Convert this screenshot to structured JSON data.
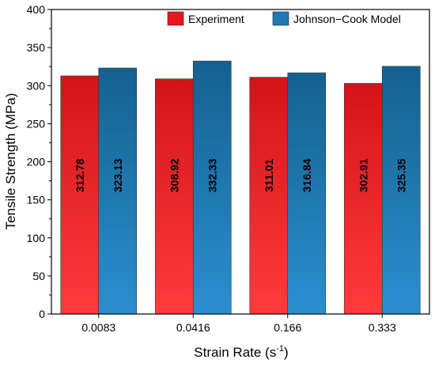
{
  "chart_data": {
    "type": "bar",
    "categories": [
      "0.0083",
      "0.0416",
      "0.166",
      "0.333"
    ],
    "series": [
      {
        "name": "Experiment",
        "values": [
          312.78,
          308.92,
          311.01,
          302.91
        ],
        "labels": [
          "312.78",
          "308.92",
          "311.01",
          "302.91"
        ],
        "color": "#e8171e"
      },
      {
        "name": "Johnson−Cook Model",
        "values": [
          323.13,
          332.33,
          316.84,
          325.35
        ],
        "labels": [
          "323.13",
          "332.33",
          "316.84",
          "325.35"
        ],
        "color": "#1f78b4"
      }
    ],
    "xlabel_base": "Strain Rate (s",
    "xlabel_sup": "-1",
    "xlabel_end": ")",
    "ylabel": "Tensile Strength (MPa)",
    "ylim": [
      0,
      400
    ],
    "yticks": [
      "0",
      "50",
      "100",
      "150",
      "200",
      "250",
      "300",
      "350",
      "400"
    ],
    "grid": false,
    "legend_position": "top-right"
  }
}
